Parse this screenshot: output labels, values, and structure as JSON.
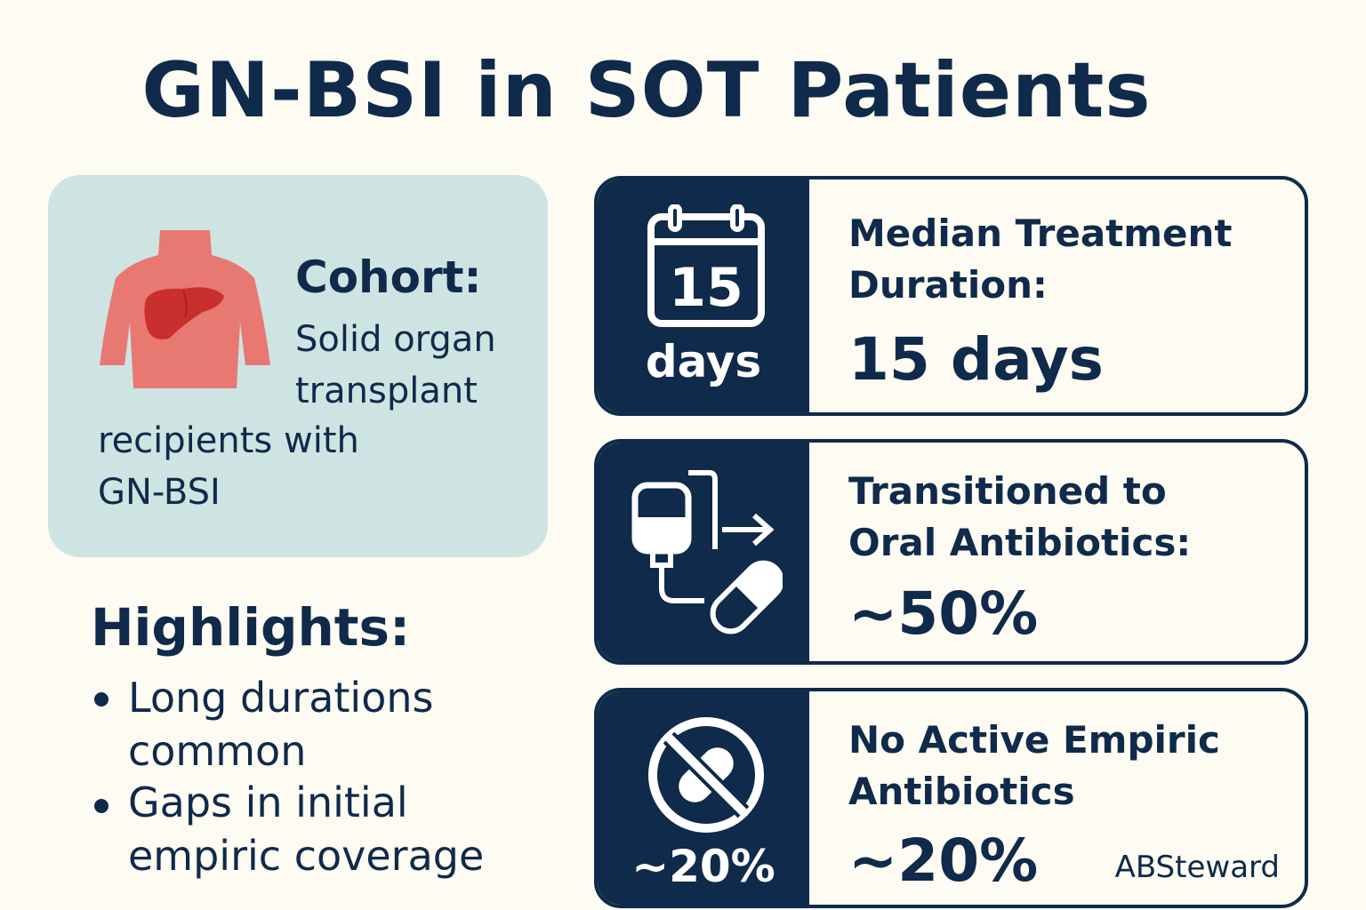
{
  "title": "GN-BSI in SOT Patients",
  "cohort": {
    "label": "Cohort:",
    "lines": [
      "Solid organ",
      "transplant",
      "recipients with",
      "GN-BSI"
    ],
    "icon": "torso-liver-icon"
  },
  "highlights": {
    "title": "Highlights:",
    "items": [
      {
        "line1": "Long durations",
        "line2": "common"
      },
      {
        "line1": "Gaps in initial",
        "line2": "empiric coverage"
      }
    ]
  },
  "cards": [
    {
      "icon": "calendar-icon",
      "icon_text": "15",
      "badge": "days",
      "heading_line1": "Median Treatment",
      "heading_line2": "Duration:",
      "value": "15 days"
    },
    {
      "icon": "iv-bag-to-pill-icon",
      "badge": "",
      "heading_line1": "Transitioned to",
      "heading_line2": "Oral Antibiotics:",
      "value": "~50%"
    },
    {
      "icon": "no-pill-icon",
      "badge": "~20%",
      "heading_line1": "No Active Empiric",
      "heading_line2": "Antibiotics",
      "value": "~20%"
    }
  ],
  "brand": "ABSteward",
  "colors": {
    "navy": "#0f2a4a",
    "background": "#fdfbf2",
    "panel": "#cde4e3",
    "torso": "#e87872",
    "liver": "#c92f2c"
  }
}
